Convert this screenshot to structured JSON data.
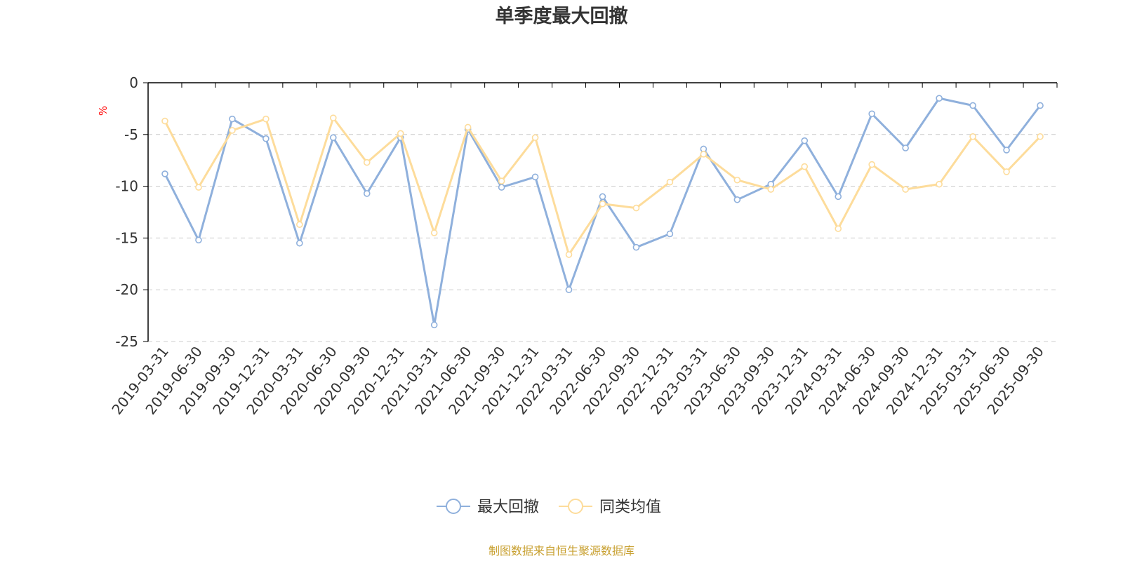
{
  "chart_data": {
    "type": "line",
    "title": "单季度最大回撤",
    "ylabel": "%",
    "ylim": [
      -25,
      0
    ],
    "yticks": [
      0,
      -5,
      -10,
      -15,
      -20,
      -25
    ],
    "grid": "y-dashed",
    "legend_position": "bottom-center",
    "categories": [
      "2019-03-31",
      "2019-06-30",
      "2019-09-30",
      "2019-12-31",
      "2020-03-31",
      "2020-06-30",
      "2020-09-30",
      "2020-12-31",
      "2021-03-31",
      "2021-06-30",
      "2021-09-30",
      "2021-12-31",
      "2022-03-31",
      "2022-06-30",
      "2022-09-30",
      "2022-12-31",
      "2023-03-31",
      "2023-06-30",
      "2023-09-30",
      "2023-12-31",
      "2024-03-31",
      "2024-06-30",
      "2024-09-30",
      "2024-12-31",
      "2025-03-31",
      "2025-06-30",
      "2025-09-30"
    ],
    "series": [
      {
        "name": "最大回撤",
        "color": "#8fb0dc",
        "values": [
          -8.8,
          -15.2,
          -3.5,
          -5.4,
          -15.5,
          -5.3,
          -10.7,
          -5.3,
          -23.4,
          -4.5,
          -10.1,
          -9.1,
          -20.0,
          -11.0,
          -15.9,
          -14.6,
          -6.4,
          -11.3,
          -9.8,
          -5.6,
          -11.0,
          -3.0,
          -6.3,
          -1.5,
          -2.2,
          -6.5,
          -2.2
        ]
      },
      {
        "name": "同类均值",
        "color": "#fddc9b",
        "values": [
          -3.7,
          -10.1,
          -4.6,
          -3.5,
          -13.7,
          -3.4,
          -7.7,
          -4.9,
          -14.5,
          -4.3,
          -9.5,
          -5.3,
          -16.6,
          -11.7,
          -12.1,
          -9.6,
          -6.9,
          -9.4,
          -10.3,
          -8.1,
          -14.1,
          -7.9,
          -10.3,
          -9.8,
          -5.2,
          -8.6,
          -5.2
        ]
      }
    ]
  },
  "source_text": "制图数据来自恒生聚源数据库",
  "colors": {
    "axis": "#000000",
    "grid": "#cccccc",
    "text": "#333333",
    "unit": "#ff0000",
    "source": "#c8a030"
  }
}
